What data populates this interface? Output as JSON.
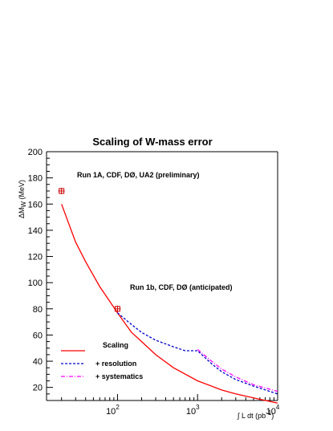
{
  "chart_data": {
    "type": "line",
    "title": "Scaling of W-mass error",
    "ylabel": "ΔM",
    "ylabel_sub": "W",
    "ylabel_unit": "(MeV)",
    "xlabel": "∫ L dt  (pb",
    "xlabel_sup": "-1",
    "xlabel_close": ")",
    "xscale": "log",
    "xlim": [
      13,
      10000
    ],
    "ylim": [
      10,
      200
    ],
    "yticks": [
      20,
      40,
      60,
      80,
      100,
      120,
      140,
      160,
      180,
      200
    ],
    "xticks": [
      {
        "value": 100,
        "base": "10",
        "exp": "2"
      },
      {
        "value": 1000,
        "base": "10",
        "exp": "3"
      },
      {
        "value": 10000,
        "base": "10",
        "exp": "4"
      }
    ],
    "grid": false,
    "legend_position": "bottom-left",
    "series": [
      {
        "name": "Scaling",
        "color": "#ff0000",
        "style": "solid",
        "x": [
          20,
          30,
          40,
          60,
          100,
          150,
          200,
          300,
          500,
          1000,
          2000,
          3000,
          5000,
          10000
        ],
        "y": [
          160,
          131,
          116,
          97,
          77,
          62,
          55,
          45,
          35,
          25,
          18,
          15,
          12,
          8
        ]
      },
      {
        "name": "+ resolution",
        "color": "#0000cc",
        "style": "dashed",
        "x": [
          100,
          150,
          200,
          300,
          500,
          700,
          1000,
          1500,
          2000,
          3000,
          5000,
          10000
        ],
        "y": [
          77,
          68,
          62,
          56,
          51,
          48,
          48,
          38,
          32,
          26,
          21,
          15
        ]
      },
      {
        "name": "+ systematics",
        "color": "#ff00ff",
        "style": "dashdot",
        "x": [
          1000,
          1500,
          2000,
          3000,
          5000,
          10000
        ],
        "y": [
          49,
          40,
          34,
          28,
          22,
          17
        ]
      }
    ],
    "measurements": [
      {
        "x": 20,
        "y": 170,
        "label": "Run 1A, CDF, DØ, UA2 (preliminary)"
      },
      {
        "x": 100,
        "y": 80,
        "label": "Run 1b, CDF, DØ (anticipated)"
      }
    ]
  }
}
